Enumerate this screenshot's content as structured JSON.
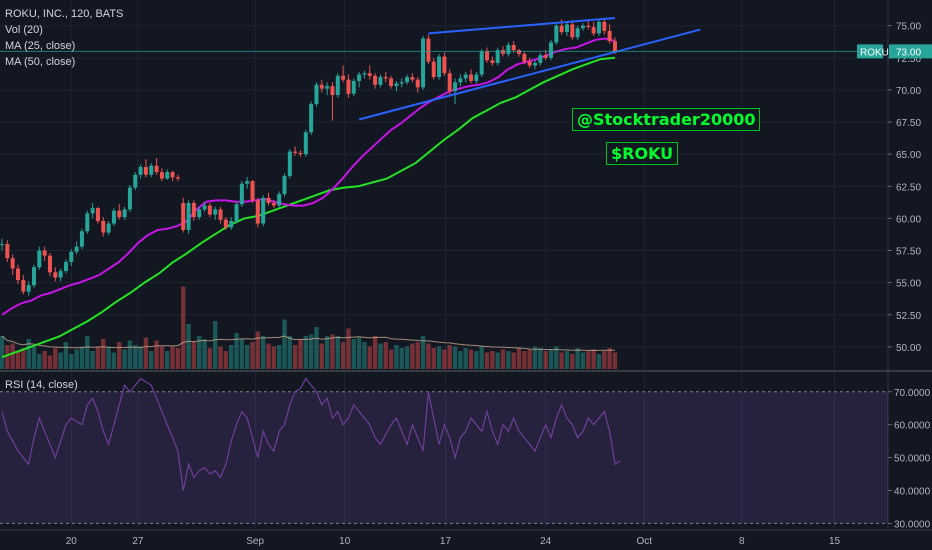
{
  "chart_data": {
    "type": "candlestick",
    "title": "ROKU, INC., 120, BATS",
    "legend": [
      "Vol (20)",
      "MA (25, close)",
      "MA (50, close)"
    ],
    "price_axis": {
      "ticks": [
        "75.00",
        "72.50",
        "70.00",
        "67.50",
        "65.00",
        "62.50",
        "60.00",
        "57.50",
        "55.00",
        "52.50",
        "50.00"
      ],
      "range": [
        48.2,
        77.0
      ]
    },
    "last_price": {
      "label": "ROKU",
      "value": "73.00"
    },
    "x_ticks": [
      "20",
      "27",
      "Sep",
      "10",
      "17",
      "24",
      "Oct",
      "8",
      "15"
    ],
    "x_tick_dates": [
      "Aug 20",
      "Aug 27",
      "Sep 3",
      "Sep 10",
      "Sep 17",
      "Sep 24",
      "Oct 1",
      "Oct 8",
      "Oct 15"
    ],
    "candles": [
      [
        58.0,
        58.4,
        57.5,
        58.0
      ],
      [
        58.0,
        58.3,
        56.6,
        56.9
      ],
      [
        56.9,
        57.2,
        55.6,
        56.1
      ],
      [
        56.1,
        56.4,
        54.9,
        55.2
      ],
      [
        55.2,
        55.6,
        54.1,
        54.3
      ],
      [
        54.3,
        55.1,
        54.0,
        54.8
      ],
      [
        54.8,
        56.4,
        54.6,
        56.2
      ],
      [
        56.2,
        57.8,
        56.0,
        57.5
      ],
      [
        57.5,
        57.8,
        56.7,
        57.1
      ],
      [
        57.1,
        57.3,
        55.5,
        55.8
      ],
      [
        55.8,
        56.2,
        55.1,
        55.4
      ],
      [
        55.4,
        56.1,
        55.1,
        55.9
      ],
      [
        55.9,
        56.8,
        55.7,
        56.6
      ],
      [
        56.6,
        57.6,
        56.3,
        57.4
      ],
      [
        57.4,
        58.2,
        57.2,
        57.8
      ],
      [
        57.8,
        59.2,
        57.6,
        59.0
      ],
      [
        59.0,
        60.6,
        58.8,
        60.4
      ],
      [
        60.4,
        61.2,
        60.0,
        60.8
      ],
      [
        60.8,
        60.9,
        59.6,
        59.8
      ],
      [
        59.8,
        60.1,
        58.6,
        58.9
      ],
      [
        58.9,
        59.8,
        58.7,
        59.6
      ],
      [
        59.6,
        60.8,
        59.4,
        60.6
      ],
      [
        60.6,
        61.1,
        59.9,
        60.1
      ],
      [
        60.1,
        60.9,
        59.9,
        60.7
      ],
      [
        60.7,
        62.6,
        60.5,
        62.4
      ],
      [
        62.4,
        63.6,
        62.2,
        63.4
      ],
      [
        63.4,
        64.2,
        63.1,
        64.0
      ],
      [
        64.0,
        64.6,
        63.2,
        63.4
      ],
      [
        63.4,
        64.3,
        63.2,
        64.1
      ],
      [
        64.1,
        64.7,
        63.4,
        63.6
      ],
      [
        63.6,
        63.9,
        62.9,
        63.1
      ],
      [
        63.1,
        63.8,
        63.0,
        63.6
      ],
      [
        63.6,
        63.7,
        62.9,
        63.2
      ],
      [
        63.2,
        63.4,
        62.9,
        63.1
      ],
      [
        61.2,
        61.6,
        58.9,
        59.1
      ],
      [
        59.1,
        61.4,
        58.8,
        61.2
      ],
      [
        61.2,
        61.4,
        59.8,
        60.1
      ],
      [
        60.1,
        60.9,
        59.9,
        60.7
      ],
      [
        60.7,
        61.3,
        60.5,
        61.0
      ],
      [
        61.0,
        61.2,
        60.1,
        60.3
      ],
      [
        60.3,
        60.9,
        59.9,
        60.7
      ],
      [
        60.7,
        60.9,
        59.6,
        59.9
      ],
      [
        59.9,
        60.1,
        59.1,
        59.3
      ],
      [
        59.3,
        60.1,
        59.1,
        59.8
      ],
      [
        59.8,
        61.3,
        59.6,
        61.1
      ],
      [
        61.1,
        62.9,
        60.9,
        62.7
      ],
      [
        62.7,
        63.2,
        62.3,
        62.9
      ],
      [
        62.9,
        63.0,
        61.2,
        61.4
      ],
      [
        61.4,
        61.6,
        59.3,
        59.6
      ],
      [
        59.6,
        61.8,
        59.4,
        61.6
      ],
      [
        61.6,
        62.0,
        61.0,
        61.2
      ],
      [
        61.2,
        61.4,
        60.8,
        61.0
      ],
      [
        61.0,
        62.1,
        60.8,
        61.9
      ],
      [
        61.9,
        63.5,
        61.7,
        63.3
      ],
      [
        63.3,
        65.4,
        63.1,
        65.2
      ],
      [
        65.2,
        65.6,
        64.9,
        65.1
      ],
      [
        65.1,
        65.3,
        64.8,
        65.0
      ],
      [
        65.0,
        66.9,
        64.8,
        66.7
      ],
      [
        66.7,
        69.1,
        66.5,
        68.9
      ],
      [
        68.9,
        70.6,
        68.7,
        70.4
      ],
      [
        70.4,
        70.8,
        69.8,
        70.1
      ],
      [
        70.1,
        70.6,
        69.6,
        70.3
      ],
      [
        70.3,
        70.6,
        67.6,
        69.6
      ],
      [
        69.6,
        71.3,
        69.4,
        71.1
      ],
      [
        71.1,
        71.9,
        70.6,
        70.8
      ],
      [
        70.8,
        71.2,
        69.4,
        69.7
      ],
      [
        69.7,
        70.9,
        69.5,
        70.7
      ],
      [
        70.7,
        71.4,
        70.2,
        71.2
      ],
      [
        71.2,
        71.5,
        70.9,
        71.3
      ],
      [
        71.3,
        71.9,
        70.8,
        71.1
      ],
      [
        71.1,
        71.3,
        70.1,
        70.4
      ],
      [
        70.4,
        71.2,
        70.2,
        71.0
      ],
      [
        71.0,
        71.4,
        70.6,
        70.9
      ],
      [
        70.9,
        71.1,
        70.1,
        70.3
      ],
      [
        70.3,
        70.7,
        69.9,
        70.5
      ],
      [
        70.5,
        70.9,
        70.2,
        70.6
      ],
      [
        70.6,
        71.2,
        70.4,
        71.0
      ],
      [
        71.0,
        71.3,
        70.6,
        70.8
      ],
      [
        70.8,
        71.0,
        69.8,
        70.2
      ],
      [
        70.2,
        74.2,
        70.0,
        74.0
      ],
      [
        74.0,
        74.3,
        72.0,
        72.2
      ],
      [
        72.2,
        72.5,
        70.8,
        71.0
      ],
      [
        71.0,
        72.8,
        70.8,
        72.6
      ],
      [
        72.6,
        72.9,
        71.1,
        71.3
      ],
      [
        71.3,
        71.6,
        69.6,
        69.9
      ],
      [
        69.9,
        70.9,
        68.9,
        70.6
      ],
      [
        70.6,
        71.2,
        70.3,
        70.9
      ],
      [
        70.9,
        71.4,
        70.6,
        71.2
      ],
      [
        71.2,
        71.6,
        70.5,
        70.7
      ],
      [
        70.7,
        71.4,
        70.5,
        71.2
      ],
      [
        71.2,
        73.2,
        71.0,
        73.0
      ],
      [
        73.0,
        73.3,
        72.1,
        72.3
      ],
      [
        72.3,
        72.6,
        71.9,
        72.1
      ],
      [
        72.1,
        73.3,
        71.9,
        73.1
      ],
      [
        73.1,
        73.4,
        72.6,
        72.8
      ],
      [
        72.8,
        73.7,
        72.6,
        73.5
      ],
      [
        73.5,
        73.8,
        72.9,
        73.1
      ],
      [
        73.1,
        73.2,
        72.6,
        72.8
      ],
      [
        72.8,
        73.0,
        72.0,
        72.2
      ],
      [
        72.2,
        72.5,
        71.7,
        71.9
      ],
      [
        71.9,
        72.3,
        71.6,
        72.1
      ],
      [
        72.1,
        72.9,
        71.9,
        72.7
      ],
      [
        72.7,
        73.1,
        72.3,
        72.5
      ],
      [
        72.5,
        73.9,
        72.3,
        73.7
      ],
      [
        73.7,
        75.2,
        73.5,
        75.0
      ],
      [
        75.0,
        75.5,
        74.3,
        74.5
      ],
      [
        74.5,
        75.3,
        74.2,
        75.1
      ],
      [
        75.1,
        75.4,
        73.9,
        74.1
      ],
      [
        74.1,
        75.0,
        73.9,
        74.8
      ],
      [
        74.8,
        75.2,
        74.6,
        75.0
      ],
      [
        75.0,
        75.4,
        74.7,
        74.9
      ],
      [
        74.9,
        75.3,
        74.2,
        74.4
      ],
      [
        74.4,
        75.5,
        74.2,
        75.3
      ],
      [
        75.3,
        75.6,
        74.3,
        74.6
      ],
      [
        74.6,
        75.1,
        73.6,
        73.8
      ],
      [
        73.8,
        74.1,
        72.8,
        73.0
      ]
    ],
    "ma25": [
      52.5,
      53.0,
      53.4,
      53.6,
      54.0,
      54.2,
      54.5,
      54.8,
      55.0,
      55.3,
      55.6,
      56.1,
      56.6,
      57.3,
      58.1,
      58.7,
      59.1,
      59.2,
      59.4,
      59.8,
      60.7,
      61.3,
      61.4,
      61.4,
      61.3,
      61.3,
      61.4,
      61.5,
      61.3,
      61.1,
      61.0,
      61.0,
      61.2,
      61.6,
      62.3,
      63.1,
      64.0,
      64.8,
      65.5,
      66.2,
      66.9,
      67.4,
      68.0,
      68.6,
      69.1,
      69.5,
      69.9,
      70.1,
      70.3,
      70.4,
      70.6,
      71.0,
      71.6,
      72.0,
      72.2,
      72.4,
      72.7,
      73.0,
      73.2,
      73.3,
      73.6,
      73.9,
      74.0,
      73.8
    ],
    "ma50": [
      49.2,
      49.6,
      50.0,
      50.4,
      50.8,
      51.4,
      52.0,
      52.7,
      53.5,
      54.2,
      55.0,
      55.7,
      56.6,
      57.3,
      58.1,
      58.8,
      59.5,
      60.0,
      60.2,
      60.6,
      61.0,
      61.4,
      61.8,
      62.2,
      62.4,
      62.5,
      62.8,
      63.1,
      63.7,
      64.3,
      65.2,
      66.1,
      66.9,
      67.8,
      68.4,
      69.0,
      69.4,
      70.0,
      70.6,
      71.1,
      71.6,
      72.0,
      72.4,
      72.5
    ],
    "volume": [
      0.22,
      0.16,
      0.17,
      0.12,
      0.14,
      0.2,
      0.15,
      0.1,
      0.12,
      0.09,
      0.14,
      0.11,
      0.18,
      0.1,
      0.13,
      0.15,
      0.22,
      0.12,
      0.15,
      0.2,
      0.15,
      0.11,
      0.18,
      0.13,
      0.19,
      0.16,
      0.15,
      0.21,
      0.12,
      0.19,
      0.15,
      0.12,
      0.15,
      0.14,
      0.55,
      0.3,
      0.18,
      0.22,
      0.2,
      0.14,
      0.32,
      0.15,
      0.12,
      0.16,
      0.24,
      0.2,
      0.16,
      0.18,
      0.25,
      0.22,
      0.17,
      0.15,
      0.16,
      0.33,
      0.22,
      0.16,
      0.2,
      0.22,
      0.23,
      0.28,
      0.17,
      0.22,
      0.23,
      0.22,
      0.18,
      0.27,
      0.2,
      0.21,
      0.18,
      0.15,
      0.22,
      0.17,
      0.18,
      0.13,
      0.16,
      0.14,
      0.15,
      0.17,
      0.18,
      0.22,
      0.17,
      0.14,
      0.15,
      0.13,
      0.16,
      0.15,
      0.12,
      0.14,
      0.13,
      0.12,
      0.15,
      0.11,
      0.12,
      0.11,
      0.13,
      0.12,
      0.11,
      0.14,
      0.12,
      0.13,
      0.15,
      0.14,
      0.12,
      0.13,
      0.15,
      0.11,
      0.12,
      0.1,
      0.14,
      0.11,
      0.12,
      0.13,
      0.1,
      0.12,
      0.14,
      0.11
    ],
    "trend_lines": [
      {
        "color": "#2962ff",
        "from": [
          80,
          74.4
        ],
        "to": [
          115,
          75.6
        ]
      },
      {
        "color": "#2962ff",
        "from": [
          67,
          67.7
        ],
        "to": [
          131,
          74.7
        ]
      }
    ],
    "rsi": {
      "label": "RSI (14, close)",
      "ticks": [
        "70.0000",
        "60.0000",
        "50.0000",
        "40.0000",
        "30.0000"
      ],
      "range": [
        28,
        76
      ],
      "band": [
        30,
        70
      ],
      "values": [
        64,
        58,
        55,
        52,
        50,
        48,
        56,
        62,
        58,
        54,
        50,
        55,
        60,
        62,
        61,
        60,
        66,
        68,
        64,
        58,
        54,
        60,
        66,
        72,
        70,
        72,
        74,
        73,
        72,
        68,
        64,
        60,
        56,
        52,
        40,
        48,
        44,
        46,
        47,
        45,
        46,
        44,
        48,
        55,
        60,
        64,
        62,
        56,
        50,
        58,
        54,
        52,
        58,
        60,
        66,
        70,
        71,
        74,
        72,
        70,
        66,
        68,
        62,
        64,
        60,
        62,
        66,
        64,
        62,
        60,
        56,
        54,
        57,
        60,
        62,
        58,
        54,
        60,
        56,
        52,
        70,
        62,
        54,
        60,
        56,
        50,
        56,
        58,
        62,
        60,
        58,
        64,
        58,
        54,
        60,
        58,
        62,
        58,
        56,
        54,
        52,
        56,
        60,
        56,
        62,
        66,
        62,
        60,
        56,
        58,
        62,
        60,
        62,
        64,
        58,
        48,
        49
      ]
    },
    "colors": {
      "up": "#26a69a",
      "down": "#ef5350",
      "ma25": "#c814e8",
      "ma50": "#24e224",
      "trend": "#2962ff",
      "background": "#131722"
    }
  },
  "annotations": {
    "handle": "@Stocktrader20000",
    "ticker": "$ROKU"
  }
}
